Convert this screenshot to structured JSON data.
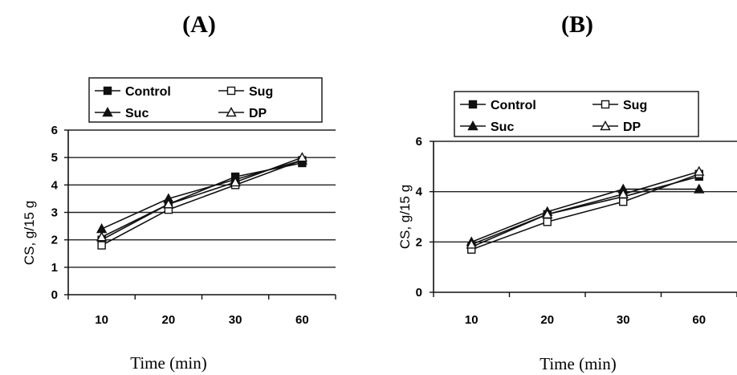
{
  "chart_data": [
    {
      "type": "line",
      "title": "(A)",
      "xlabel": "Time (min)",
      "ylabel": "CS, g/15 g",
      "categories": [
        "10",
        "20",
        "30",
        "60"
      ],
      "ylim": [
        0,
        6
      ],
      "yticks": [
        0,
        1,
        2,
        3,
        4,
        5,
        6
      ],
      "grid": true,
      "legend": "top",
      "series": [
        {
          "name": "Control",
          "marker": "square-filled",
          "values": [
            2.0,
            3.3,
            4.3,
            4.8
          ]
        },
        {
          "name": "Sug",
          "marker": "square-open",
          "values": [
            1.8,
            3.1,
            4.0,
            4.9
          ]
        },
        {
          "name": "Suc",
          "marker": "triangle-filled",
          "values": [
            2.4,
            3.5,
            4.2,
            4.9
          ]
        },
        {
          "name": "DP",
          "marker": "triangle-open",
          "values": [
            2.1,
            3.3,
            4.1,
            5.0
          ]
        }
      ]
    },
    {
      "type": "line",
      "title": "(B)",
      "xlabel": "Time (min)",
      "ylabel": "CS, g/15 g",
      "categories": [
        "10",
        "20",
        "30",
        "60"
      ],
      "ylim": [
        0,
        6
      ],
      "yticks": [
        0,
        2,
        4,
        6
      ],
      "grid": true,
      "legend": "top",
      "series": [
        {
          "name": "Control",
          "marker": "square-filled",
          "values": [
            1.8,
            3.1,
            3.8,
            4.6
          ]
        },
        {
          "name": "Sug",
          "marker": "square-open",
          "values": [
            1.7,
            2.8,
            3.6,
            4.7
          ]
        },
        {
          "name": "Suc",
          "marker": "triangle-filled",
          "values": [
            2.0,
            3.2,
            4.1,
            4.1
          ]
        },
        {
          "name": "DP",
          "marker": "triangle-open",
          "values": [
            1.9,
            3.1,
            3.9,
            4.8
          ]
        }
      ]
    }
  ]
}
